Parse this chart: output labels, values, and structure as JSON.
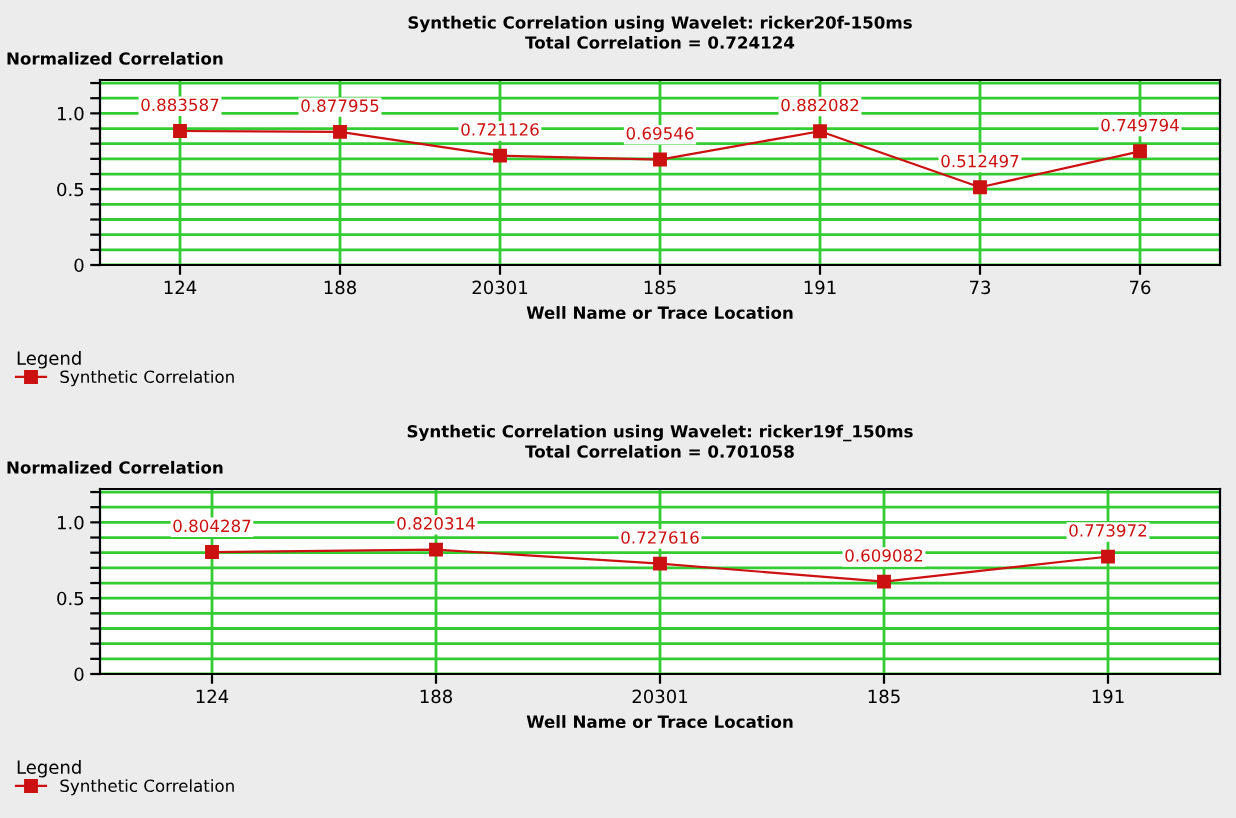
{
  "chart_data": [
    {
      "type": "line",
      "title": "Synthetic Correlation using Wavelet: ricker20f-150ms",
      "subtitle": "Total Correlation = 0.724124",
      "ylabel": "Normalized Correlation",
      "xlabel": "Well Name or Trace Location",
      "legend_title": "Legend",
      "categories": [
        "124",
        "188",
        "20301",
        "185",
        "191",
        "73",
        "76"
      ],
      "series": [
        {
          "name": "Synthetic Correlation",
          "color": "#cc1111",
          "values": [
            0.883587,
            0.877955,
            0.721126,
            0.69546,
            0.882082,
            0.512497,
            0.749794
          ]
        }
      ],
      "ylim": [
        0,
        1.22
      ],
      "yticks": [
        0,
        {
          "value": 0.1,
          "label": null
        },
        {
          "value": 0.2,
          "label": null
        },
        {
          "value": 0.3,
          "label": null
        },
        {
          "value": 0.4,
          "label": null
        },
        {
          "value": 0.5,
          "label": "0.5"
        },
        {
          "value": 0.6,
          "label": null
        },
        {
          "value": 0.7,
          "label": null
        },
        {
          "value": 0.8,
          "label": null
        },
        {
          "value": 0.9,
          "label": null
        },
        {
          "value": 1.0,
          "label": "1.0"
        },
        {
          "value": 1.1,
          "label": null
        },
        {
          "value": 1.2,
          "label": null
        }
      ],
      "grid": true,
      "legend": "bottom left",
      "marker": "square",
      "line_style": "solid",
      "data_labels": true
    },
    {
      "type": "line",
      "title": "Synthetic Correlation using Wavelet: ricker19f_150ms",
      "subtitle": "Total Correlation = 0.701058",
      "ylabel": "Normalized Correlation",
      "xlabel": "Well Name or Trace Location",
      "legend_title": "Legend",
      "categories": [
        "124",
        "188",
        "20301",
        "185",
        "191"
      ],
      "series": [
        {
          "name": "Synthetic Correlation",
          "color": "#cc1111",
          "values": [
            0.804287,
            0.820314,
            0.727616,
            0.609082,
            0.773972
          ]
        }
      ],
      "ylim": [
        0,
        1.22
      ],
      "yticks": [
        0,
        {
          "value": 0.1,
          "label": null
        },
        {
          "value": 0.2,
          "label": null
        },
        {
          "value": 0.3,
          "label": null
        },
        {
          "value": 0.4,
          "label": null
        },
        {
          "value": 0.5,
          "label": "0.5"
        },
        {
          "value": 0.6,
          "label": null
        },
        {
          "value": 0.7,
          "label": null
        },
        {
          "value": 0.8,
          "label": null
        },
        {
          "value": 0.9,
          "label": null
        },
        {
          "value": 1.0,
          "label": "1.0"
        },
        {
          "value": 1.1,
          "label": null
        },
        {
          "value": 1.2,
          "label": null
        }
      ],
      "grid": true,
      "legend": "bottom left",
      "marker": "square",
      "line_style": "solid",
      "data_labels": true
    }
  ]
}
